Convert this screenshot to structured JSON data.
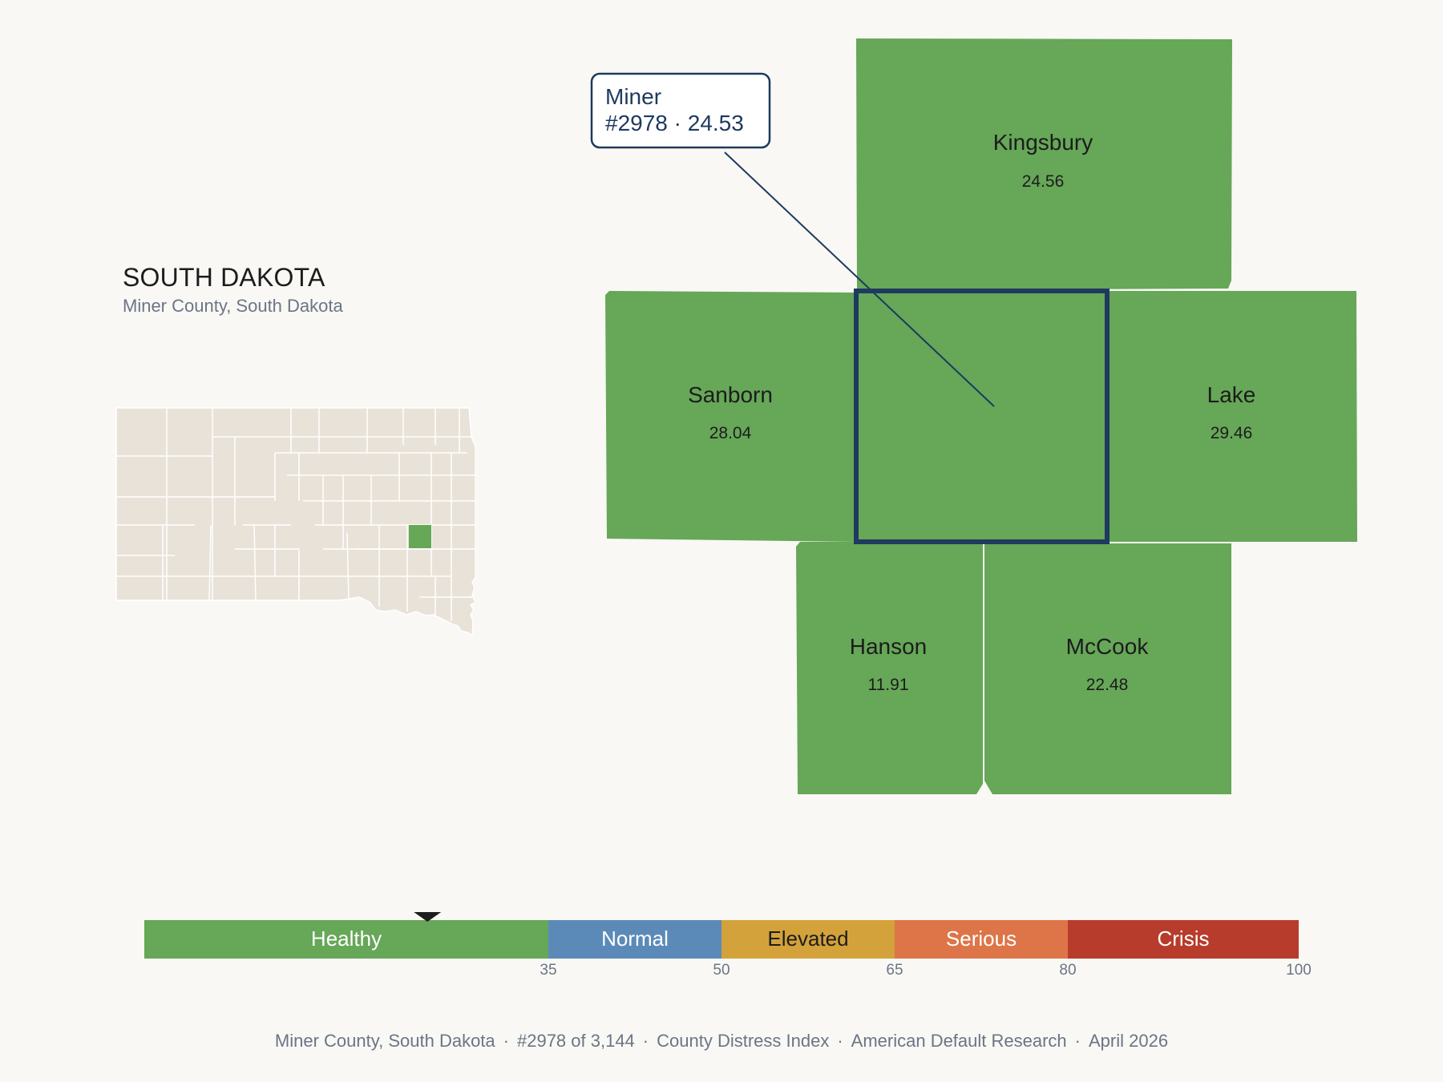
{
  "header": {
    "state": "SOUTH DAKOTA",
    "subtitle": "Miner County, South Dakota"
  },
  "colors": {
    "background": "#f9f8f5",
    "healthy": "#66a758",
    "normal": "#5b8ab8",
    "elevated": "#d4a23b",
    "serious": "#dd7548",
    "crisis": "#b83c2b",
    "locator_base": "#e8e2d8",
    "highlight_outline": "#1e3a5f"
  },
  "focus_county": {
    "name": "Miner",
    "rank": "#2978",
    "score": 24.53,
    "callout": "#2978 · 24.53"
  },
  "neighbors": [
    {
      "name": "Kingsbury",
      "score": "24.56"
    },
    {
      "name": "Sanborn",
      "score": "28.04"
    },
    {
      "name": "Lake",
      "score": "29.46"
    },
    {
      "name": "Hanson",
      "score": "11.91"
    },
    {
      "name": "McCook",
      "score": "22.48"
    }
  ],
  "scale": {
    "min": 0,
    "max": 100,
    "marker_value": 24.53,
    "bands": [
      {
        "label": "Healthy",
        "from": 0,
        "to": 35,
        "color": "#66a758",
        "text_color": "#ffffff"
      },
      {
        "label": "Normal",
        "from": 35,
        "to": 50,
        "color": "#5b8ab8",
        "text_color": "#ffffff"
      },
      {
        "label": "Elevated",
        "from": 50,
        "to": 65,
        "color": "#d4a23b",
        "text_color": "#1c1c1c"
      },
      {
        "label": "Serious",
        "from": 65,
        "to": 80,
        "color": "#dd7548",
        "text_color": "#ffffff"
      },
      {
        "label": "Crisis",
        "from": 80,
        "to": 100,
        "color": "#b83c2b",
        "text_color": "#ffffff"
      }
    ],
    "tick_labels": [
      "35",
      "50",
      "65",
      "80",
      "100"
    ]
  },
  "footer": {
    "county": "Miner County, South Dakota",
    "rank": "#2978 of 3,144",
    "index": "County Distress Index",
    "org": "American Default Research",
    "date": "April 2026"
  }
}
